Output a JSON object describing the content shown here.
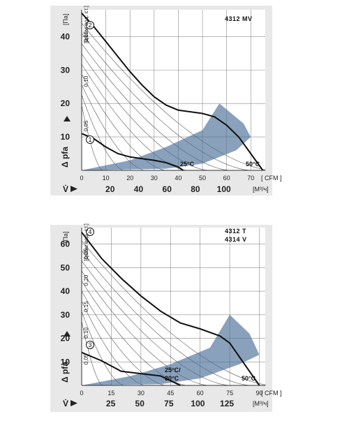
{
  "chart_data": [
    {
      "type": "line",
      "title": "4312 MV",
      "ylabel": "Δ pfa",
      "yunit": "[Па]",
      "y2unit": "[дюйм вод. ст.]",
      "xlabel": "V̇",
      "xunit_cfm": "[ CFM ]",
      "xunit_m3h": "[M³/ч]",
      "xlim_cfm": [
        0,
        76
      ],
      "ylim": [
        0,
        48
      ],
      "y_ticks": [
        "10",
        "20",
        "30",
        "40"
      ],
      "y2_ticks": [
        "0,05",
        "0,10",
        "0,15"
      ],
      "cfm_ticks": [
        "0",
        "10",
        "20",
        "30",
        "40",
        "50",
        "60",
        "70"
      ],
      "m3h_ticks": [
        "20",
        "40",
        "60",
        "80",
        "100"
      ],
      "temp_labels": [
        "25°C",
        "50°C"
      ],
      "series": [
        {
          "name": "2",
          "x": [
            0,
            5,
            10,
            15,
            20,
            25,
            30,
            35,
            40,
            45,
            50,
            55,
            60,
            65,
            70,
            75
          ],
          "y": [
            47,
            43,
            38.5,
            34,
            29.5,
            25.5,
            22,
            19.5,
            18,
            17.5,
            17,
            16,
            13.5,
            10,
            5,
            0
          ]
        },
        {
          "name": "1",
          "x": [
            0,
            5,
            10,
            15,
            20,
            25,
            30,
            35,
            40,
            42
          ],
          "y": [
            11,
            9.5,
            7,
            5,
            4,
            3.5,
            3,
            2.3,
            1,
            0
          ]
        }
      ]
    },
    {
      "type": "line",
      "title": "4312 T",
      "subtitle": "4314 V",
      "ylabel": "Δ pfa",
      "yunit": "[Па]",
      "y2unit": "[дюйм вод. ст.]",
      "xlabel": "V̇",
      "xunit_cfm": "[ CFM ]",
      "xunit_m3h": "[M³/ч]",
      "xlim_cfm": [
        0,
        93
      ],
      "ylim": [
        0,
        67
      ],
      "y_ticks": [
        "10",
        "20",
        "30",
        "40",
        "50",
        "60"
      ],
      "y2_ticks": [
        "0,05",
        "0,10",
        "0,15",
        "0,20",
        "0,25"
      ],
      "cfm_ticks": [
        "0",
        "15",
        "30",
        "45",
        "60",
        "75",
        "90"
      ],
      "m3h_ticks": [
        "25",
        "50",
        "75",
        "100",
        "125"
      ],
      "temp_labels": [
        "25°C/",
        "30°C",
        "50°C"
      ],
      "series": [
        {
          "name": "4",
          "x": [
            0,
            10,
            20,
            30,
            40,
            50,
            60,
            70,
            75,
            80,
            85,
            90
          ],
          "y": [
            65,
            54,
            45.5,
            38,
            31.5,
            26.5,
            24,
            21,
            18,
            12,
            6,
            0
          ]
        },
        {
          "name": "3",
          "x": [
            0,
            10,
            20,
            30,
            40,
            45,
            50
          ],
          "y": [
            14,
            10.5,
            6,
            5,
            4,
            2,
            0
          ]
        }
      ]
    }
  ]
}
